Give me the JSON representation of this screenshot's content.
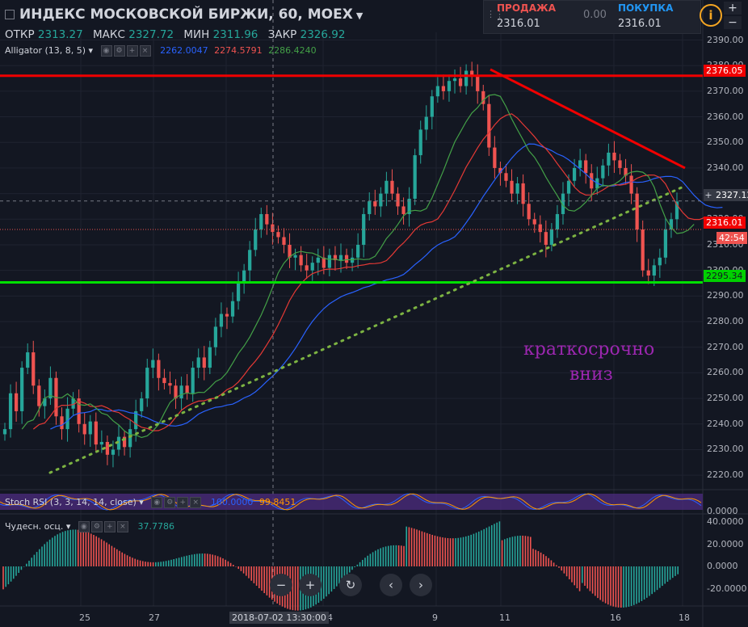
{
  "header": {
    "title": "ИНДЕКС МОСКОВСКОЙ БИРЖИ, 60, MOEX",
    "ohlc": [
      {
        "label": "ОТКР",
        "value": "2313.27"
      },
      {
        "label": "МАКС",
        "value": "2327.72"
      },
      {
        "label": "МИН",
        "value": "2311.96"
      },
      {
        "label": "ЗАКР",
        "value": "2326.92"
      }
    ]
  },
  "trade": {
    "sell_label": "ПРОДАЖА",
    "sell_price": "2316.01",
    "spread": "0.00",
    "buy_label": "ПОКУПКА",
    "buy_price": "2316.01"
  },
  "indicators": {
    "alligator": {
      "name": "Alligator (13, 8, 5)",
      "v1": "2262.0047",
      "v2": "2274.5791",
      "v3": "2286.4240"
    },
    "stoch": {
      "name": "Stoch RSI (3, 3, 14, 14, close)",
      "v1": "100.0000",
      "v2": "99.8451"
    },
    "ao": {
      "name": "Чудесн. осц.",
      "v1": "37.7786"
    }
  },
  "annotation": {
    "line1": "краткосрочно",
    "line2": "вниз"
  },
  "price_tags": {
    "resistance": "2376.05",
    "crosshair": "2327.12",
    "last": "2316.01",
    "countdown": "42:54",
    "support": "2295.34"
  },
  "y_ticks": [
    "2390.00",
    "2380.00",
    "2370.00",
    "2360.00",
    "2350.00",
    "2340.00",
    "2330.00",
    "2320.00",
    "2310.00",
    "2300.00",
    "2290.00",
    "2280.00",
    "2270.00",
    "2260.00",
    "2250.00",
    "2240.00",
    "2230.00",
    "2220.00"
  ],
  "stoch_ticks": [
    "0.0000"
  ],
  "ao_ticks": [
    "40.0000",
    "20.0000",
    "0.0000",
    "-20.0000"
  ],
  "x_ticks": [
    "25",
    "27",
    "4",
    "9",
    "11",
    "16",
    "18"
  ],
  "x_crosshair": "2018-07-02 13:30:00",
  "colors": {
    "up": "#26a69a",
    "down": "#ef5350",
    "jaw": "#2962ff",
    "teeth": "#e53935",
    "lips": "#43a047",
    "resistance": "#f00000",
    "support": "#00e000",
    "trend": "#7cb342"
  },
  "chart_data": {
    "type": "candlestick",
    "ylim": [
      2215,
      2393
    ],
    "horizontal_lines": [
      2376.05,
      2295.34
    ],
    "close_series": [
      2238,
      2252,
      2245,
      2262,
      2268,
      2255,
      2247,
      2250,
      2258,
      2243,
      2238,
      2246,
      2250,
      2240,
      2236,
      2241,
      2232,
      2233,
      2228,
      2230,
      2235,
      2231,
      2238,
      2245,
      2250,
      2262,
      2265,
      2258,
      2256,
      2255,
      2250,
      2255,
      2252,
      2262,
      2266,
      2262,
      2270,
      2278,
      2283,
      2282,
      2288,
      2295,
      2300,
      2308,
      2316,
      2322,
      2318,
      2315,
      2313,
      2310,
      2305,
      2306,
      2302,
      2300,
      2303,
      2305,
      2301,
      2306,
      2304,
      2306,
      2303,
      2305,
      2310,
      2322,
      2327,
      2325,
      2330,
      2335,
      2330,
      2325,
      2322,
      2328,
      2345,
      2355,
      2360,
      2368,
      2372,
      2370,
      2374,
      2375,
      2372,
      2378,
      2376,
      2370,
      2365,
      2348,
      2340,
      2338,
      2335,
      2330,
      2334,
      2326,
      2320,
      2318,
      2315,
      2310,
      2316,
      2322,
      2330,
      2335,
      2340,
      2343,
      2338,
      2332,
      2336,
      2341,
      2346,
      2343,
      2340,
      2337,
      2330,
      2316,
      2300,
      2298,
      2302,
      2305,
      2316,
      2320,
      2326.92
    ],
    "alligator": {
      "jaw": 2262.0047,
      "teeth": 2274.5791,
      "lips": 2286.424
    }
  }
}
